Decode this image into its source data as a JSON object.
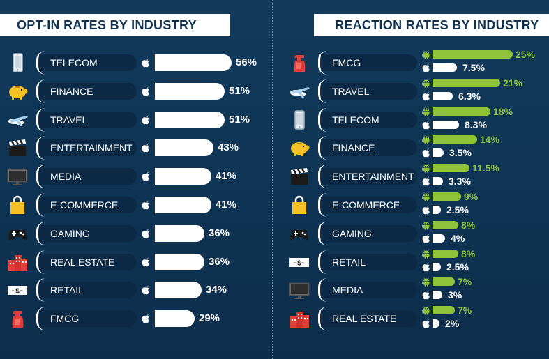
{
  "chart_data": [
    {
      "type": "bar",
      "title": "OPT-IN RATES BY INDUSTRY",
      "categories": [
        "TELECOM",
        "FINANCE",
        "TRAVEL",
        "ENTERTAINMENT",
        "MEDIA",
        "E-COMMERCE",
        "GAMING",
        "REAL ESTATE",
        "RETAIL",
        "FMCG"
      ],
      "icons": [
        "phone-icon",
        "piggy-bank-icon",
        "airplane-icon",
        "clapperboard-icon",
        "tv-icon",
        "shopping-bag-icon",
        "gamepad-icon",
        "buildings-icon",
        "money-icon",
        "spray-bottle-icon"
      ],
      "series": [
        {
          "platform": "apple",
          "values": [
            56,
            51,
            51,
            43,
            41,
            41,
            36,
            36,
            34,
            29
          ],
          "labels": [
            "56%",
            "51%",
            "51%",
            "43%",
            "41%",
            "41%",
            "36%",
            "36%",
            "34%",
            "29%"
          ]
        }
      ]
    },
    {
      "type": "bar",
      "title": "REACTION RATES BY INDUSTRY",
      "categories": [
        "FMCG",
        "TRAVEL",
        "TELECOM",
        "FINANCE",
        "ENTERTAINMENT",
        "E-COMMERCE",
        "GAMING",
        "RETAIL",
        "MEDIA",
        "REAL ESTATE"
      ],
      "icons": [
        "spray-bottle-icon",
        "airplane-icon",
        "phone-icon",
        "piggy-bank-icon",
        "clapperboard-icon",
        "shopping-bag-icon",
        "gamepad-icon",
        "money-icon",
        "tv-icon",
        "buildings-icon"
      ],
      "series": [
        {
          "platform": "android",
          "values": [
            25,
            21,
            18,
            14,
            11.5,
            9,
            8,
            8,
            7,
            7
          ],
          "labels": [
            "25%",
            "21%",
            "18%",
            "14%",
            "11.5%",
            "9%",
            "8%",
            "8%",
            "7%",
            "7%"
          ]
        },
        {
          "platform": "apple",
          "values": [
            7.5,
            6.3,
            8.3,
            3.5,
            3.3,
            2.5,
            4,
            2.5,
            3,
            2
          ],
          "labels": [
            "7.5%",
            "6.3%",
            "8.3%",
            "3.5%",
            "3.3%",
            "2.5%",
            "4%",
            "2.5%",
            "3%",
            "2%"
          ]
        }
      ]
    }
  ],
  "colors": {
    "background": "#0f3352",
    "pill": "#0c2a45",
    "android": "#8fc43a",
    "apple": "#ffffff",
    "title_text": "#0f3352"
  }
}
